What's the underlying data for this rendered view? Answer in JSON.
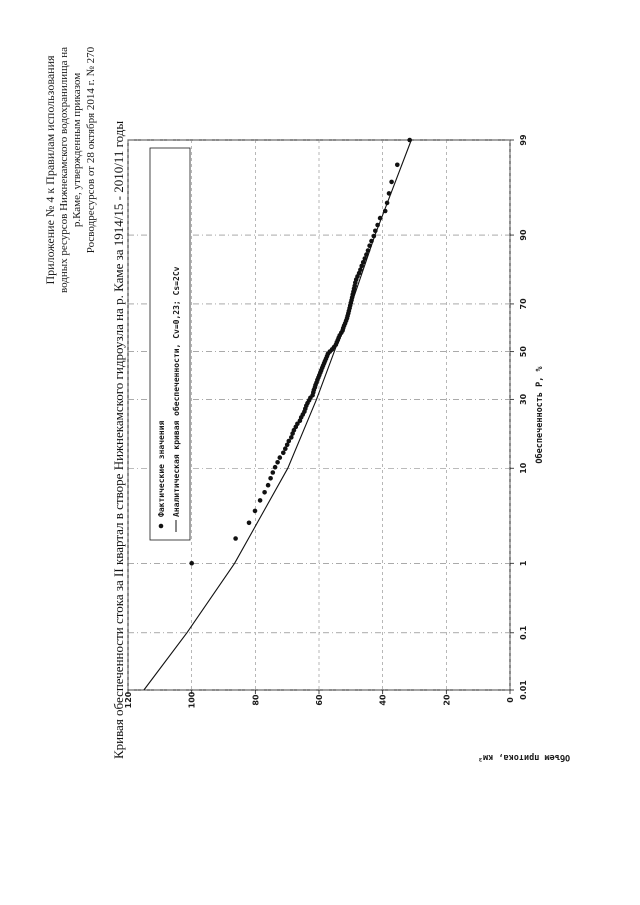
{
  "header": {
    "line1": "Приложение № 4 к Правилам использования",
    "line2": "водных ресурсов Нижнекамского водохранилища на",
    "line3": "р.Каме, утвержденным приказом",
    "line4": "Росводресурсов от 28 октября 2014 г. № 270"
  },
  "chart_data": {
    "type": "scatter",
    "title": "Кривая обеспеченности стока за II квартал в створе Нижнекамского гидроузла на р. Каме за 1914/15 - 2010/11 годы",
    "xlabel": "Обеспеченность P, %",
    "ylabel": "Объем притока, км³",
    "x_scale": "probability",
    "x_ticks": [
      "0.01",
      "0.1",
      "1",
      "10",
      "30",
      "50",
      "70",
      "90",
      "99"
    ],
    "y_ticks": [
      "0",
      "20",
      "40",
      "60",
      "80",
      "100",
      "120"
    ],
    "ylim": [
      0,
      120
    ],
    "grid": true,
    "legend_position": "top-right",
    "legend": {
      "points": "Фактические значения",
      "curve": "Аналитическая кривая обеспеченности, Cv=0,23; Cs=2Cv"
    },
    "series": [
      {
        "name": "Фактические значения",
        "kind": "points",
        "x": [
          1.0,
          2.0,
          3.0,
          4.0,
          5.1,
          6.1,
          7.1,
          8.2,
          9.2,
          10.2,
          11.2,
          12.2,
          13.3,
          14.3,
          15.3,
          16.3,
          17.3,
          18.4,
          19.4,
          20.4,
          21.4,
          22.4,
          23.5,
          24.5,
          25.5,
          26.5,
          27.6,
          28.6,
          29.6,
          30.6,
          31.6,
          32.7,
          33.7,
          34.7,
          35.7,
          36.7,
          37.8,
          38.8,
          39.8,
          40.8,
          41.8,
          42.9,
          43.9,
          44.9,
          45.9,
          46.9,
          48.0,
          49.0,
          50.0,
          51.0,
          52.0,
          53.1,
          54.1,
          55.1,
          56.1,
          57.1,
          58.2,
          59.2,
          60.2,
          61.2,
          62.2,
          63.3,
          64.3,
          65.3,
          66.3,
          67.3,
          68.4,
          69.4,
          70.4,
          71.4,
          72.4,
          73.5,
          74.5,
          75.5,
          76.5,
          77.6,
          78.6,
          79.6,
          80.6,
          81.6,
          82.7,
          83.7,
          84.7,
          85.7,
          86.7,
          87.8,
          88.8,
          89.8,
          90.8,
          91.8,
          92.9,
          93.9,
          94.9,
          95.9,
          96.9,
          98.0,
          99.0
        ],
        "y": [
          100.0,
          86.2,
          82.0,
          80.1,
          78.5,
          77.1,
          76.0,
          75.2,
          74.5,
          73.8,
          73.0,
          72.3,
          71.2,
          70.6,
          70.0,
          69.5,
          68.7,
          68.3,
          67.9,
          67.3,
          66.8,
          66.0,
          65.6,
          65.1,
          64.6,
          64.3,
          64.0,
          63.6,
          63.1,
          62.7,
          62.0,
          61.8,
          61.6,
          61.3,
          61.1,
          60.8,
          60.5,
          60.2,
          59.9,
          59.6,
          59.3,
          59.0,
          58.7,
          58.4,
          58.1,
          57.8,
          57.5,
          57.2,
          56.6,
          55.9,
          55.3,
          54.7,
          54.4,
          54.1,
          53.8,
          53.5,
          53.0,
          52.6,
          52.4,
          52.1,
          51.8,
          51.5,
          51.2,
          51.0,
          50.8,
          50.6,
          50.4,
          50.2,
          50.0,
          49.8,
          49.6,
          49.4,
          49.2,
          49.0,
          48.8,
          48.6,
          48.3,
          47.9,
          47.4,
          47.0,
          46.6,
          46.1,
          45.6,
          45.1,
          44.6,
          44.1,
          43.5,
          42.8,
          42.3,
          41.6,
          40.8,
          39.2,
          38.6,
          38.0,
          37.2,
          35.4,
          31.5
        ]
      },
      {
        "name": "Аналитическая кривая обеспеченности, Cv=0,23; Cs=2Cv",
        "kind": "line",
        "x": [
          0.01,
          0.1,
          1,
          10,
          30,
          50,
          70,
          90,
          99
        ],
        "y": [
          115.0,
          101.5,
          86.5,
          69.8,
          60.8,
          55.2,
          49.8,
          42.4,
          31.0
        ]
      }
    ]
  }
}
